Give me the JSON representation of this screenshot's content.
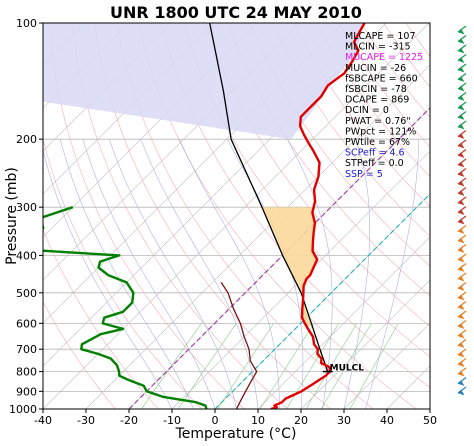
{
  "chart_data": {
    "type": "line",
    "title": "UNR 1800 UTC 24 MAY 2010",
    "xlabel": "Temperature (°C)",
    "ylabel": "Pressure (mb)",
    "xlim": [
      -40,
      50
    ],
    "ylim": [
      1000,
      100
    ],
    "y_scale": "log",
    "x_ticks": [
      -40,
      -30,
      -20,
      -10,
      0,
      10,
      20,
      30,
      40,
      50
    ],
    "y_ticks": [
      100,
      200,
      300,
      400,
      500,
      600,
      700,
      800,
      900,
      1000
    ],
    "grid": true,
    "skew": 45,
    "indices": [
      {
        "text": "MLCAPE = 107",
        "color": "#000000"
      },
      {
        "text": "MLCIN = -315",
        "color": "#000000"
      },
      {
        "text": "MUCAPE = 1225",
        "color": "#e81ee8"
      },
      {
        "text": "MUCIN = -26",
        "color": "#000000"
      },
      {
        "text": "fSBCAPE = 660",
        "color": "#000000"
      },
      {
        "text": "fSBCIN = -78",
        "color": "#000000"
      },
      {
        "text": "DCAPE = 869",
        "color": "#000000"
      },
      {
        "text": "DCIN = 0",
        "color": "#000000"
      },
      {
        "text": "PWAT = 0.76\"",
        "color": "#000000"
      },
      {
        "text": "PWpct = 121%",
        "color": "#000000"
      },
      {
        "text": "PWtile = 67%",
        "color": "#000000"
      },
      {
        "text": "SCPeff = 4.6",
        "color": "#1a1acc"
      },
      {
        "text": "STPeff = 0.0",
        "color": "#000000"
      },
      {
        "text": "SSP = 5",
        "color": "#1a1acc"
      }
    ],
    "annotation": "MULCL",
    "series": [
      {
        "role": "temperature",
        "color": "#e00000",
        "points": [
          [
            1000,
            13
          ],
          [
            990,
            14
          ],
          [
            980,
            13
          ],
          [
            960,
            14
          ],
          [
            940,
            14
          ],
          [
            920,
            15
          ],
          [
            900,
            16
          ],
          [
            860,
            17
          ],
          [
            820,
            18
          ],
          [
            800,
            18
          ],
          [
            780,
            17
          ],
          [
            760,
            14
          ],
          [
            740,
            13
          ],
          [
            720,
            11
          ],
          [
            700,
            10
          ],
          [
            680,
            8
          ],
          [
            650,
            6
          ],
          [
            620,
            3
          ],
          [
            600,
            1
          ],
          [
            580,
            -1
          ],
          [
            550,
            -3
          ],
          [
            520,
            -5
          ],
          [
            480,
            -8
          ],
          [
            460,
            -9
          ],
          [
            450,
            -9
          ],
          [
            430,
            -10
          ],
          [
            410,
            -11
          ],
          [
            390,
            -14
          ],
          [
            370,
            -16
          ],
          [
            350,
            -18
          ],
          [
            330,
            -20
          ],
          [
            310,
            -23
          ],
          [
            290,
            -25
          ],
          [
            270,
            -28
          ],
          [
            250,
            -30
          ],
          [
            230,
            -33
          ],
          [
            215,
            -37
          ],
          [
            205,
            -40
          ],
          [
            195,
            -43
          ],
          [
            185,
            -46
          ],
          [
            175,
            -48
          ],
          [
            165,
            -48
          ],
          [
            155,
            -48
          ],
          [
            145,
            -49
          ],
          [
            135,
            -48
          ],
          [
            125,
            -49
          ],
          [
            118,
            -50
          ],
          [
            112,
            -53
          ],
          [
            106,
            -54
          ],
          [
            100,
            -55
          ]
        ]
      },
      {
        "role": "dewpoint",
        "color": "#008000",
        "points": [
          [
            1000,
            -2
          ],
          [
            980,
            -3
          ],
          [
            960,
            -6
          ],
          [
            930,
            -15
          ],
          [
            900,
            -20
          ],
          [
            870,
            -22
          ],
          [
            840,
            -27
          ],
          [
            820,
            -30
          ],
          [
            800,
            -31
          ],
          [
            770,
            -33
          ],
          [
            740,
            -36
          ],
          [
            720,
            -40
          ],
          [
            700,
            -45
          ],
          [
            680,
            -46
          ],
          [
            660,
            -45
          ],
          [
            640,
            -44
          ],
          [
            620,
            -40
          ],
          [
            600,
            -46
          ],
          [
            580,
            -47
          ],
          [
            560,
            -44
          ],
          [
            530,
            -44
          ],
          [
            500,
            -46
          ],
          [
            470,
            -50
          ],
          [
            450,
            -56
          ],
          [
            430,
            -60
          ],
          [
            415,
            -61
          ],
          [
            400,
            -58
          ],
          [
            390,
            -75
          ],
          [
            380,
            -90
          ],
          [
            360,
            -89
          ],
          [
            340,
            -82
          ],
          [
            320,
            -85
          ],
          [
            300,
            -80
          ]
        ]
      },
      {
        "role": "parcel",
        "color": "#000000",
        "points": [
          [
            800,
            17.5
          ],
          [
            700,
            10.5
          ],
          [
            600,
            2.5
          ],
          [
            500,
            -7
          ],
          [
            400,
            -20
          ],
          [
            300,
            -36
          ],
          [
            200,
            -59
          ],
          [
            150,
            -72
          ],
          [
            100,
            -91
          ]
        ]
      },
      {
        "role": "wetbulb",
        "color": "#7a1010",
        "points": [
          [
            1000,
            5
          ],
          [
            950,
            4
          ],
          [
            900,
            3
          ],
          [
            850,
            2
          ],
          [
            800,
            1
          ],
          [
            750,
            -3
          ],
          [
            700,
            -6
          ],
          [
            650,
            -10
          ],
          [
            600,
            -14
          ],
          [
            550,
            -19
          ],
          [
            500,
            -24
          ],
          [
            470,
            -28
          ]
        ]
      }
    ]
  }
}
